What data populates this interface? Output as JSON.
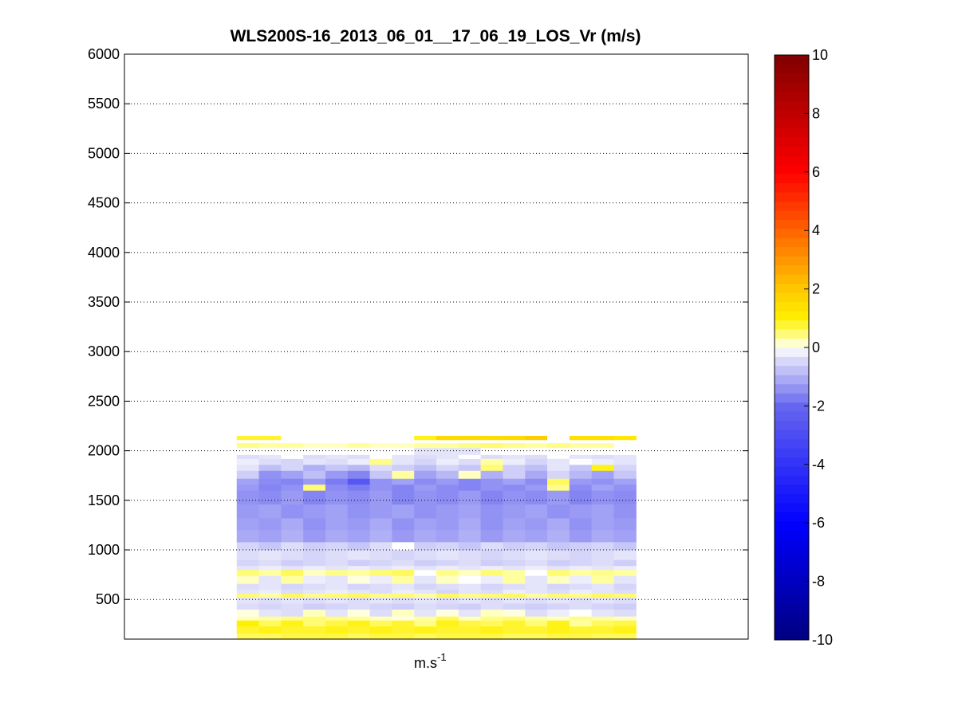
{
  "chart_data": {
    "type": "heatmap",
    "title": "WLS200S-16_2013_06_01__17_06_19_LOS_Vr (m/s)",
    "xlabel": "m.s",
    "xlabel_superscript": "-1",
    "ylabel": "",
    "ylim": [
      100,
      6000
    ],
    "yticks": [
      500,
      1000,
      1500,
      2000,
      2500,
      3000,
      3500,
      4000,
      4500,
      5000,
      5500,
      6000
    ],
    "grid": "y-dotted",
    "data_extent_fraction": [
      0.18,
      0.82
    ],
    "colorbar": {
      "range": [
        -10,
        10
      ],
      "ticks": [
        -10,
        -8,
        -6,
        -4,
        -2,
        0,
        2,
        4,
        6,
        8,
        10
      ],
      "colormap": "blue-white-yellow-red"
    },
    "column_count": 18,
    "rows": [
      {
        "y0": 100,
        "y1": 160,
        "values": [
          0.6,
          0.6,
          0.7,
          0.7,
          0.7,
          0.6,
          0.7,
          0.7,
          0.6,
          0.7,
          0.7,
          0.7,
          0.6,
          0.6,
          0.7,
          0.7,
          0.6,
          0.6
        ]
      },
      {
        "y0": 160,
        "y1": 230,
        "values": [
          0.8,
          0.9,
          0.8,
          0.8,
          0.9,
          0.8,
          0.9,
          0.8,
          0.9,
          0.8,
          0.8,
          0.9,
          0.8,
          0.8,
          0.9,
          0.8,
          0.8,
          0.9
        ]
      },
      {
        "y0": 230,
        "y1": 290,
        "values": [
          1.0,
          0.6,
          0.9,
          0.5,
          0.7,
          0.9,
          0.6,
          0.8,
          0.4,
          0.9,
          0.7,
          0.6,
          0.8,
          0.5,
          0.9,
          0.3,
          0.6,
          0.7
        ]
      },
      {
        "y0": 290,
        "y1": 330,
        "values": [
          0.2,
          0.3,
          0.4,
          0.5,
          0.4,
          0.3,
          0.2,
          0.1,
          0.3,
          0.6,
          0.2,
          0.4,
          0.5,
          0.3,
          0.2,
          0.4,
          0.3,
          0.2
        ]
      },
      {
        "y0": 330,
        "y1": 400,
        "values": [
          0.1,
          -0.3,
          -0.4,
          0.2,
          -0.3,
          0.1,
          -0.4,
          0.2,
          -0.3,
          0.1,
          -0.3,
          0.2,
          0.1,
          -0.4,
          -0.2,
          0.0,
          -0.3,
          -0.4
        ]
      },
      {
        "y0": 400,
        "y1": 460,
        "values": [
          -0.4,
          -0.5,
          -0.4,
          -0.6,
          -0.5,
          -0.4,
          -0.5,
          -0.6,
          -0.4,
          -0.5,
          -0.6,
          -0.4,
          -0.5,
          -0.6,
          -0.5,
          -0.4,
          -0.5,
          -0.6
        ]
      },
      {
        "y0": 460,
        "y1": 520,
        "values": [
          -0.3,
          -0.4,
          -0.3,
          -0.4,
          -0.3,
          -0.4,
          -0.3,
          -0.4,
          -0.3,
          -0.4,
          -0.3,
          -0.4,
          -0.3,
          -0.4,
          -0.3,
          -0.4,
          -0.3,
          -0.4
        ]
      },
      {
        "y0": 520,
        "y1": 560,
        "values": [
          0.5,
          0.3,
          0.6,
          0.4,
          0.5,
          0.6,
          0.4,
          0.5,
          0.3,
          0.6,
          0.4,
          0.5,
          0.6,
          0.3,
          0.5,
          0.4,
          0.6,
          0.5
        ]
      },
      {
        "y0": 560,
        "y1": 600,
        "values": [
          -0.3,
          -0.2,
          -0.4,
          -0.3,
          -0.2,
          -0.3,
          -0.4,
          -0.2,
          -0.3,
          -0.5,
          -0.3,
          -0.4,
          -0.2,
          -0.3,
          -0.4,
          -0.2,
          -0.3,
          -0.4
        ]
      },
      {
        "y0": 600,
        "y1": 660,
        "values": [
          -0.4,
          -0.3,
          -0.5,
          -0.4,
          -0.3,
          -0.5,
          -0.4,
          -0.3,
          -0.5,
          -0.4,
          -0.3,
          -0.5,
          -0.4,
          -0.3,
          -0.5,
          -0.4,
          -0.3,
          -0.5
        ]
      },
      {
        "y0": 660,
        "y1": 740,
        "values": [
          0.2,
          -0.3,
          0.3,
          -0.2,
          -0.3,
          0.1,
          -0.2,
          0.3,
          -0.3,
          0.2,
          0.0,
          -0.2,
          0.3,
          -0.3,
          0.2,
          -0.2,
          0.3,
          -0.3
        ]
      },
      {
        "y0": 740,
        "y1": 800,
        "values": [
          0.5,
          0.3,
          0.6,
          0.2,
          0.4,
          0.3,
          0.5,
          0.6,
          0.0,
          0.4,
          0.2,
          0.5,
          0.3,
          0.0,
          0.5,
          0.3,
          0.4,
          0.3
        ]
      },
      {
        "y0": 800,
        "y1": 840,
        "values": [
          -0.3,
          -0.2,
          -0.3,
          -0.2,
          -0.3,
          -0.2,
          -0.3,
          -0.2,
          -0.3,
          -0.2,
          -0.3,
          -0.2,
          -0.3,
          -0.2,
          -0.3,
          -0.2,
          -0.3,
          -0.2
        ]
      },
      {
        "y0": 840,
        "y1": 900,
        "values": [
          -0.5,
          -0.4,
          -0.6,
          -0.5,
          -0.4,
          -0.6,
          -0.5,
          -0.4,
          -0.6,
          -0.5,
          -0.4,
          -0.6,
          -0.5,
          -0.4,
          -0.6,
          -0.5,
          -0.4,
          -0.6
        ]
      },
      {
        "y0": 900,
        "y1": 1000,
        "values": [
          -0.4,
          -0.3,
          -0.4,
          -0.5,
          -0.4,
          -0.3,
          -0.4,
          -0.5,
          -0.4,
          -0.3,
          -0.4,
          -0.5,
          -0.4,
          -0.3,
          -0.4,
          -0.5,
          -0.4,
          -0.3
        ]
      },
      {
        "y0": 1000,
        "y1": 1080,
        "values": [
          -0.5,
          -0.7,
          -0.4,
          -0.6,
          -0.5,
          -0.7,
          -0.4,
          -0.0,
          -0.6,
          -0.5,
          -0.7,
          -0.4,
          -0.6,
          -0.5,
          -0.7,
          -0.6,
          -0.5,
          -0.7
        ]
      },
      {
        "y0": 1080,
        "y1": 1200,
        "values": [
          -1.1,
          -1.2,
          -1.0,
          -1.3,
          -1.1,
          -1.2,
          -1.0,
          -1.3,
          -1.1,
          -1.2,
          -1.0,
          -1.3,
          -1.1,
          -1.2,
          -1.0,
          -1.3,
          -1.1,
          -1.2
        ]
      },
      {
        "y0": 1200,
        "y1": 1320,
        "values": [
          -1.2,
          -1.3,
          -1.1,
          -1.4,
          -1.2,
          -1.3,
          -1.1,
          -1.4,
          -1.2,
          -1.3,
          -1.1,
          -1.4,
          -1.2,
          -1.3,
          -1.1,
          -1.4,
          -1.2,
          -1.3
        ]
      },
      {
        "y0": 1320,
        "y1": 1460,
        "values": [
          -1.3,
          -1.2,
          -1.4,
          -1.3,
          -1.2,
          -1.4,
          -1.3,
          -1.2,
          -1.4,
          -1.3,
          -1.2,
          -1.4,
          -1.3,
          -1.2,
          -1.4,
          -1.3,
          -1.2,
          -1.4
        ]
      },
      {
        "y0": 1460,
        "y1": 1600,
        "values": [
          -1.4,
          -1.5,
          -1.3,
          -1.6,
          -1.4,
          -1.5,
          -1.3,
          -1.6,
          -1.4,
          -1.5,
          -1.3,
          -1.6,
          -1.4,
          -1.5,
          -1.3,
          -1.6,
          -1.4,
          -1.5
        ]
      },
      {
        "y0": 1600,
        "y1": 1660,
        "values": [
          -1.3,
          -1.6,
          -1.4,
          0.5,
          -1.5,
          -1.7,
          -1.4,
          -1.6,
          -1.3,
          -1.5,
          -1.6,
          -1.4,
          -1.5,
          -1.3,
          0.4,
          -1.5,
          -1.2,
          -1.4
        ]
      },
      {
        "y0": 1660,
        "y1": 1720,
        "values": [
          -1.2,
          -1.5,
          -1.6,
          -1.3,
          -1.7,
          -2.6,
          -1.4,
          -1.2,
          -1.5,
          -1.3,
          -1.6,
          -1.4,
          -1.2,
          -1.5,
          0.6,
          -1.3,
          -1.4,
          -1.2
        ]
      },
      {
        "y0": 1720,
        "y1": 1800,
        "values": [
          -0.6,
          -1.4,
          -1.2,
          -0.8,
          -1.3,
          -1.6,
          -0.7,
          0.3,
          -1.2,
          -0.9,
          0.2,
          -1.0,
          -0.6,
          -1.1,
          -0.5,
          -0.9,
          -1.2,
          -0.7
        ]
      },
      {
        "y0": 1800,
        "y1": 1860,
        "values": [
          -0.3,
          -0.8,
          -0.5,
          -1.0,
          -0.7,
          -0.9,
          -0.4,
          -0.6,
          -0.8,
          -0.5,
          -0.7,
          0.5,
          -0.6,
          -0.8,
          -0.3,
          -0.7,
          0.9,
          -0.5
        ]
      },
      {
        "y0": 1860,
        "y1": 1920,
        "values": [
          -0.2,
          -0.4,
          -0.5,
          -0.3,
          -0.4,
          -0.2,
          0.4,
          -0.3,
          -0.5,
          -0.2,
          -0.4,
          0.3,
          -0.2,
          -0.5,
          -0.3,
          0.0,
          -0.2,
          -0.3
        ]
      },
      {
        "y0": 1920,
        "y1": 1960,
        "values": [
          -0.4,
          -0.3,
          0.0,
          -0.4,
          -0.3,
          -0.4,
          0.0,
          -0.3,
          -0.4,
          -0.3,
          0.0,
          -0.4,
          -0.3,
          -0.4,
          0.0,
          -0.3,
          -0.4,
          -0.3
        ]
      },
      {
        "y0": 1960,
        "y1": 2030,
        "values": [
          0.0,
          0.0,
          0.0,
          0.0,
          0.0,
          0.0,
          0.0,
          0.0,
          -0.3,
          -0.3,
          -0.3,
          0.0,
          0.0,
          0.0,
          0.0,
          0.0,
          0.0,
          0.0
        ]
      },
      {
        "y0": 2030,
        "y1": 2080,
        "values": [
          0.4,
          0.3,
          0.3,
          0.2,
          0.2,
          0.3,
          0.2,
          0.2,
          0.3,
          0.3,
          0.4,
          0.5,
          0.4,
          0.3,
          0.4,
          0.3,
          0.3,
          0.0
        ]
      },
      {
        "y0": 2080,
        "y1": 2110,
        "values": [
          0.0,
          0.0,
          0.0,
          0.0,
          0.0,
          0.0,
          0.0,
          0.0,
          0.0,
          0.0,
          0.0,
          0.0,
          0.0,
          0.0,
          0.0,
          0.0,
          0.0,
          0.0
        ]
      },
      {
        "y0": 2110,
        "y1": 2150,
        "values": [
          0.8,
          0.8,
          0.0,
          0.0,
          0.0,
          0.0,
          0.0,
          0.0,
          0.9,
          1.6,
          1.6,
          1.5,
          1.6,
          1.9,
          0.0,
          1.4,
          1.4,
          1.2
        ]
      }
    ]
  }
}
